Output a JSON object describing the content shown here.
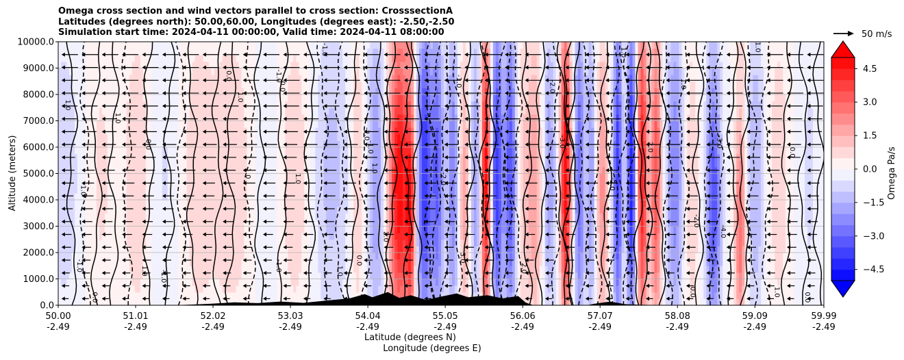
{
  "chart_data": {
    "type": "heatmap",
    "title_lines": [
      "Omega cross section and wind vectors parallel to cross section: CrosssectionA",
      "Latitudes (degrees north): 50.00,60.00, Longitudes (degrees east): -2.50,-2.50",
      "Simulation start time: 2024-04-11 00:00:00, Valid time: 2024-04-11 08:00:00"
    ],
    "xlabel_line1": "Latitude (degrees N)",
    "xlabel_line2": "Longitude (degrees E)",
    "ylabel": "Altitude (meters)",
    "ylim": [
      0,
      10000
    ],
    "xlim": [
      50.0,
      59.99
    ],
    "x_ticks": [
      {
        "lat": "50.00",
        "lon": "-2.49",
        "v": 50.0
      },
      {
        "lat": "51.01",
        "lon": "-2.49",
        "v": 51.01
      },
      {
        "lat": "52.02",
        "lon": "-2.49",
        "v": 52.02
      },
      {
        "lat": "53.03",
        "lon": "-2.49",
        "v": 53.03
      },
      {
        "lat": "54.04",
        "lon": "-2.49",
        "v": 54.04
      },
      {
        "lat": "55.05",
        "lon": "-2.49",
        "v": 55.05
      },
      {
        "lat": "56.06",
        "lon": "-2.49",
        "v": 56.06
      },
      {
        "lat": "57.07",
        "lon": "-2.49",
        "v": 57.07
      },
      {
        "lat": "58.08",
        "lon": "-2.49",
        "v": 58.08
      },
      {
        "lat": "59.09",
        "lon": "-2.49",
        "v": 59.09
      },
      {
        "lat": "59.99",
        "lon": "-2.49",
        "v": 59.99
      }
    ],
    "y_ticks": [
      {
        "label": "0.0",
        "v": 0
      },
      {
        "label": "1000.0",
        "v": 1000
      },
      {
        "label": "2000.0",
        "v": 2000
      },
      {
        "label": "3000.0",
        "v": 3000
      },
      {
        "label": "4000.0",
        "v": 4000
      },
      {
        "label": "5000.0",
        "v": 5000
      },
      {
        "label": "6000.0",
        "v": 6000
      },
      {
        "label": "7000.0",
        "v": 7000
      },
      {
        "label": "8000.0",
        "v": 8000
      },
      {
        "label": "9000.0",
        "v": 9000
      },
      {
        "label": "10000.0",
        "v": 10000
      }
    ],
    "colorbar": {
      "label": "Omega Pa/s",
      "range": [
        -5.0,
        5.0
      ],
      "ticks": [
        {
          "label": "4.5",
          "v": 4.5
        },
        {
          "label": "3.0",
          "v": 3.0
        },
        {
          "label": "1.5",
          "v": 1.5
        },
        {
          "label": "0.0",
          "v": 0.0
        },
        {
          "label": "−1.5",
          "v": -1.5
        },
        {
          "label": "−3.0",
          "v": -3.0
        },
        {
          "label": "−4.5",
          "v": -4.5
        }
      ],
      "cmap": "bwr"
    },
    "quiver_key": {
      "label": "50 m/s",
      "value": 50
    },
    "omega_bands": [
      {
        "x": 50.08,
        "w": 0.25,
        "a": -0.8,
        "top": 10000
      },
      {
        "x": 50.55,
        "w": 0.2,
        "a": 0.6,
        "top": 10000
      },
      {
        "x": 51.05,
        "w": 0.2,
        "a": 1.0,
        "top": 10000
      },
      {
        "x": 51.35,
        "w": 0.25,
        "a": -0.6,
        "top": 10000
      },
      {
        "x": 51.8,
        "w": 0.2,
        "a": 0.8,
        "top": 10000
      },
      {
        "x": 52.25,
        "w": 0.3,
        "a": 0.9,
        "top": 10000
      },
      {
        "x": 52.75,
        "w": 0.2,
        "a": -0.6,
        "top": 10000
      },
      {
        "x": 53.1,
        "w": 0.25,
        "a": 1.0,
        "top": 10000
      },
      {
        "x": 53.55,
        "w": 0.3,
        "a": -1.2,
        "top": 10000
      },
      {
        "x": 53.9,
        "w": 0.1,
        "a": 1.2,
        "top": 10000
      },
      {
        "x": 54.15,
        "w": 0.12,
        "a": -2.0,
        "top": 10000
      },
      {
        "x": 54.45,
        "w": 0.14,
        "a": 5.0,
        "top": 9200
      },
      {
        "x": 54.6,
        "w": 0.06,
        "a": 3.5,
        "top": 7000
      },
      {
        "x": 54.78,
        "w": 0.1,
        "a": -4.0,
        "top": 10000
      },
      {
        "x": 54.95,
        "w": 0.08,
        "a": -3.0,
        "top": 10000
      },
      {
        "x": 55.15,
        "w": 0.08,
        "a": -2.5,
        "top": 10000
      },
      {
        "x": 55.3,
        "w": 0.08,
        "a": 1.8,
        "top": 8500
      },
      {
        "x": 55.45,
        "w": 0.08,
        "a": -2.0,
        "top": 10000
      },
      {
        "x": 55.58,
        "w": 0.07,
        "a": 5.0,
        "top": 10000
      },
      {
        "x": 55.72,
        "w": 0.08,
        "a": -4.0,
        "top": 10000
      },
      {
        "x": 55.9,
        "w": 0.08,
        "a": -3.5,
        "top": 10000
      },
      {
        "x": 56.05,
        "w": 0.08,
        "a": 0.8,
        "top": 10000
      },
      {
        "x": 56.22,
        "w": 0.12,
        "a": 2.0,
        "top": 9000
      },
      {
        "x": 56.4,
        "w": 0.1,
        "a": -2.0,
        "top": 10000
      },
      {
        "x": 56.62,
        "w": 0.07,
        "a": 5.0,
        "top": 10000
      },
      {
        "x": 56.8,
        "w": 0.07,
        "a": -3.0,
        "top": 10000
      },
      {
        "x": 56.95,
        "w": 0.06,
        "a": -2.0,
        "top": 10000
      },
      {
        "x": 57.1,
        "w": 0.07,
        "a": 2.2,
        "top": 8500
      },
      {
        "x": 57.3,
        "w": 0.06,
        "a": -4.0,
        "top": 10000
      },
      {
        "x": 57.48,
        "w": 0.06,
        "a": -4.5,
        "top": 10000
      },
      {
        "x": 57.62,
        "w": 0.07,
        "a": 4.5,
        "top": 10000
      },
      {
        "x": 57.8,
        "w": 0.07,
        "a": 3.5,
        "top": 9500
      },
      {
        "x": 58.05,
        "w": 0.12,
        "a": -2.5,
        "top": 10000
      },
      {
        "x": 58.25,
        "w": 0.12,
        "a": 1.0,
        "top": 9000
      },
      {
        "x": 58.55,
        "w": 0.1,
        "a": -3.5,
        "top": 8000
      },
      {
        "x": 58.9,
        "w": 0.07,
        "a": 3.0,
        "top": 6000
      },
      {
        "x": 59.1,
        "w": 0.12,
        "a": -1.5,
        "top": 10000
      },
      {
        "x": 59.4,
        "w": 0.15,
        "a": 0.8,
        "top": 10000
      },
      {
        "x": 59.8,
        "w": 0.15,
        "a": -0.6,
        "top": 10000
      }
    ],
    "contour_lines": [
      {
        "x": 50.18,
        "style": "solid"
      },
      {
        "x": 50.35,
        "style": "dashed"
      },
      {
        "x": 50.5,
        "style": "solid"
      },
      {
        "x": 50.72,
        "style": "solid"
      },
      {
        "x": 50.9,
        "style": "dashed"
      },
      {
        "x": 51.18,
        "style": "solid"
      },
      {
        "x": 51.45,
        "style": "solid"
      },
      {
        "x": 51.6,
        "style": "dashed"
      },
      {
        "x": 51.75,
        "style": "solid"
      },
      {
        "x": 52.08,
        "style": "solid"
      },
      {
        "x": 52.25,
        "style": "solid"
      },
      {
        "x": 52.5,
        "style": "dashed"
      },
      {
        "x": 52.63,
        "style": "solid"
      },
      {
        "x": 52.93,
        "style": "solid"
      },
      {
        "x": 53.28,
        "style": "solid"
      },
      {
        "x": 53.45,
        "style": "dashed"
      },
      {
        "x": 53.68,
        "style": "dashed"
      },
      {
        "x": 53.84,
        "style": "solid"
      },
      {
        "x": 54.0,
        "style": "dashed"
      },
      {
        "x": 54.22,
        "style": "solid"
      },
      {
        "x": 54.35,
        "style": "solid"
      },
      {
        "x": 54.55,
        "style": "solid"
      },
      {
        "x": 54.68,
        "style": "solid"
      },
      {
        "x": 54.85,
        "style": "dashed"
      },
      {
        "x": 54.92,
        "style": "dashed"
      },
      {
        "x": 55.05,
        "style": "dashed"
      },
      {
        "x": 55.2,
        "style": "dashed"
      },
      {
        "x": 55.36,
        "style": "solid"
      },
      {
        "x": 55.5,
        "style": "dashed"
      },
      {
        "x": 55.56,
        "style": "solid"
      },
      {
        "x": 55.64,
        "style": "solid"
      },
      {
        "x": 55.78,
        "style": "dashed"
      },
      {
        "x": 55.85,
        "style": "dashed"
      },
      {
        "x": 55.98,
        "style": "dashed"
      },
      {
        "x": 56.12,
        "style": "solid"
      },
      {
        "x": 56.3,
        "style": "solid"
      },
      {
        "x": 56.48,
        "style": "dashed"
      },
      {
        "x": 56.58,
        "style": "solid"
      },
      {
        "x": 56.66,
        "style": "solid"
      },
      {
        "x": 56.73,
        "style": "solid"
      },
      {
        "x": 56.86,
        "style": "dashed"
      },
      {
        "x": 57.02,
        "style": "dashed"
      },
      {
        "x": 57.15,
        "style": "solid"
      },
      {
        "x": 57.25,
        "style": "dashed"
      },
      {
        "x": 57.38,
        "style": "dashed"
      },
      {
        "x": 57.45,
        "style": "dashed"
      },
      {
        "x": 57.57,
        "style": "solid"
      },
      {
        "x": 57.68,
        "style": "solid"
      },
      {
        "x": 57.86,
        "style": "solid"
      },
      {
        "x": 57.95,
        "style": "dashed"
      },
      {
        "x": 58.16,
        "style": "dashed"
      },
      {
        "x": 58.35,
        "style": "solid"
      },
      {
        "x": 58.48,
        "style": "dashed"
      },
      {
        "x": 58.62,
        "style": "dashed"
      },
      {
        "x": 58.8,
        "style": "solid"
      },
      {
        "x": 58.95,
        "style": "solid"
      },
      {
        "x": 59.05,
        "style": "dashed"
      },
      {
        "x": 59.25,
        "style": "dashed"
      },
      {
        "x": 59.5,
        "style": "solid"
      },
      {
        "x": 59.72,
        "style": "solid"
      },
      {
        "x": 59.92,
        "style": "solid"
      }
    ],
    "contour_labels": [
      {
        "text": "0.0",
        "x": 50.45,
        "y": 300
      },
      {
        "text": "-1.0",
        "x": 50.25,
        "y": 1500
      },
      {
        "text": "1.0",
        "x": 50.1,
        "y": 7600
      },
      {
        "text": "-1.0",
        "x": 50.3,
        "y": 4400
      },
      {
        "text": "1.0",
        "x": 50.75,
        "y": 7100
      },
      {
        "text": "0.0",
        "x": 51.15,
        "y": 6100
      },
      {
        "text": "1.0",
        "x": 51.1,
        "y": 1300
      },
      {
        "text": "-1.0",
        "x": 51.35,
        "y": 1100
      },
      {
        "text": "0.0",
        "x": 52.2,
        "y": 8700
      },
      {
        "text": "1.0",
        "x": 52.35,
        "y": 7900
      },
      {
        "text": "0.0",
        "x": 52.9,
        "y": 8300
      },
      {
        "text": "-1.0",
        "x": 52.85,
        "y": 8700
      },
      {
        "text": "1.0",
        "x": 52.45,
        "y": 5000
      },
      {
        "text": "1.0",
        "x": 53.1,
        "y": 4800
      },
      {
        "text": "-1.0",
        "x": 52.85,
        "y": 1500
      },
      {
        "text": "-1.0",
        "x": 53.45,
        "y": 9700
      },
      {
        "text": "-2.0",
        "x": 54.0,
        "y": 6500
      },
      {
        "text": "-1.0",
        "x": 54.05,
        "y": 6000
      },
      {
        "text": "1.0",
        "x": 54.1,
        "y": 5200
      },
      {
        "text": "2.0",
        "x": 54.25,
        "y": 2600
      },
      {
        "text": "0.0",
        "x": 53.9,
        "y": 1700
      },
      {
        "text": "1.0",
        "x": 53.65,
        "y": 1300
      },
      {
        "text": "3.0",
        "x": 55.25,
        "y": 1800
      },
      {
        "text": "-2.0",
        "x": 55.0,
        "y": 4800
      },
      {
        "text": "-1.0",
        "x": 55.2,
        "y": 8500
      },
      {
        "text": "2.0",
        "x": 56.05,
        "y": 1400
      },
      {
        "text": "-2.0",
        "x": 56.42,
        "y": 8300
      },
      {
        "text": "-3.0",
        "x": 56.55,
        "y": 6200
      },
      {
        "text": "-2.0",
        "x": 57.2,
        "y": 4600
      },
      {
        "text": "1.0",
        "x": 57.35,
        "y": 9600
      },
      {
        "text": "2.0",
        "x": 57.7,
        "y": 6000
      },
      {
        "text": "1.0",
        "x": 58.13,
        "y": 8400
      },
      {
        "text": "-2.0",
        "x": 58.3,
        "y": 3200
      },
      {
        "text": "0.0",
        "x": 58.25,
        "y": 500
      },
      {
        "text": "-3.0",
        "x": 58.6,
        "y": 6200
      },
      {
        "text": "-4.0",
        "x": 58.65,
        "y": 2800
      },
      {
        "text": "1.0",
        "x": 59.1,
        "y": 9800
      },
      {
        "text": "1.0",
        "x": 59.35,
        "y": 500
      },
      {
        "text": "0.0",
        "x": 59.55,
        "y": 5800
      },
      {
        "text": "0.0",
        "x": 59.75,
        "y": 300
      }
    ],
    "terrain": [
      {
        "x": 50.0,
        "y": 0
      },
      {
        "x": 51.5,
        "y": 0
      },
      {
        "x": 51.8,
        "y": 30
      },
      {
        "x": 52.0,
        "y": 60
      },
      {
        "x": 52.3,
        "y": 110
      },
      {
        "x": 52.6,
        "y": 80
      },
      {
        "x": 52.9,
        "y": 140
      },
      {
        "x": 53.2,
        "y": 90
      },
      {
        "x": 53.5,
        "y": 180
      },
      {
        "x": 53.8,
        "y": 260
      },
      {
        "x": 54.0,
        "y": 420
      },
      {
        "x": 54.1,
        "y": 300
      },
      {
        "x": 54.3,
        "y": 500
      },
      {
        "x": 54.45,
        "y": 280
      },
      {
        "x": 54.6,
        "y": 380
      },
      {
        "x": 54.8,
        "y": 200
      },
      {
        "x": 55.0,
        "y": 330
      },
      {
        "x": 55.2,
        "y": 450
      },
      {
        "x": 55.35,
        "y": 300
      },
      {
        "x": 55.6,
        "y": 380
      },
      {
        "x": 55.8,
        "y": 260
      },
      {
        "x": 56.0,
        "y": 350
      },
      {
        "x": 56.1,
        "y": 100
      },
      {
        "x": 56.2,
        "y": 0
      },
      {
        "x": 56.9,
        "y": 0
      },
      {
        "x": 57.0,
        "y": 60
      },
      {
        "x": 57.2,
        "y": 140
      },
      {
        "x": 57.4,
        "y": 40
      },
      {
        "x": 57.6,
        "y": 20
      },
      {
        "x": 57.9,
        "y": 0
      },
      {
        "x": 59.99,
        "y": 0
      }
    ]
  }
}
